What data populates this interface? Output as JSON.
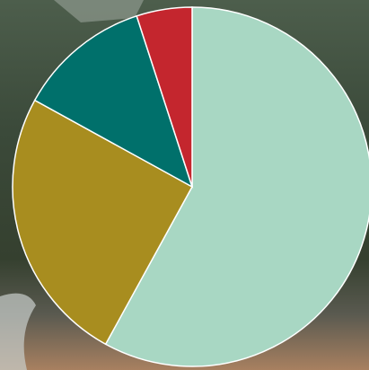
{
  "chart_data": {
    "type": "pie",
    "values": [
      58,
      25,
      12,
      5
    ],
    "colors": [
      "#a8d7c3",
      "#a88d1f",
      "#00706b",
      "#c4262e"
    ],
    "start_angle": 0,
    "direction": "clockwise"
  }
}
